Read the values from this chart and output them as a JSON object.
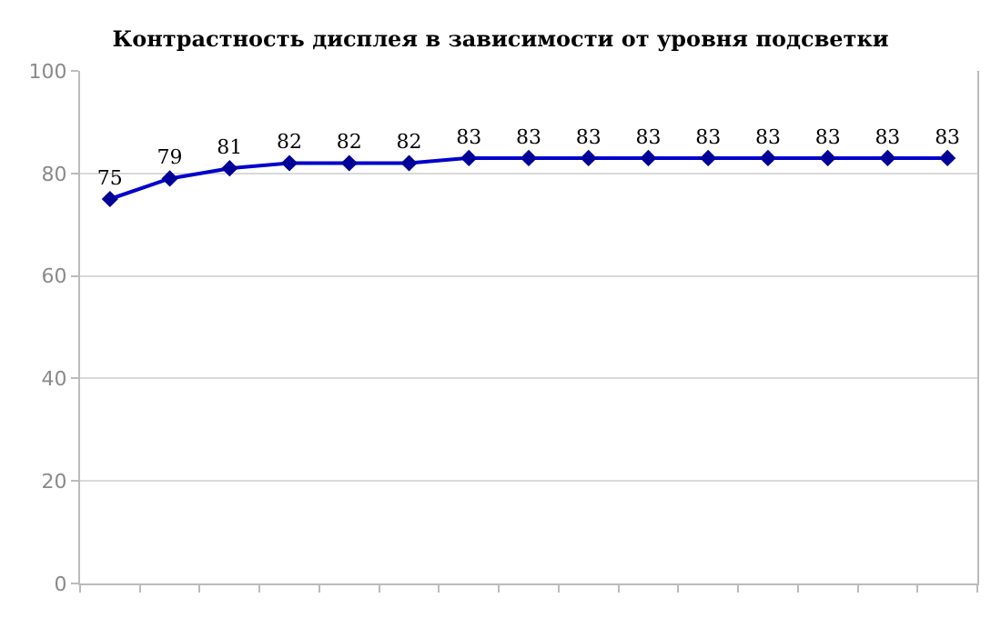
{
  "chart_data": {
    "type": "line",
    "title": "Контрастность дисплея в зависимости от уровня подсветки",
    "categories": [
      null,
      null,
      null,
      null,
      null,
      null,
      null,
      null,
      null,
      null,
      null,
      null,
      null,
      null,
      null
    ],
    "series": [
      {
        "color": "#0000cc",
        "values": [
          75,
          79,
          81,
          82,
          82,
          82,
          83,
          83,
          83,
          83,
          83,
          83,
          83,
          83,
          83
        ]
      }
    ],
    "ylim": [
      0,
      100
    ],
    "yticks": [
      0,
      20,
      40,
      60,
      80,
      100
    ],
    "grid": "y",
    "marker": "diamond",
    "line_style": "solid",
    "data_labels": true
  }
}
